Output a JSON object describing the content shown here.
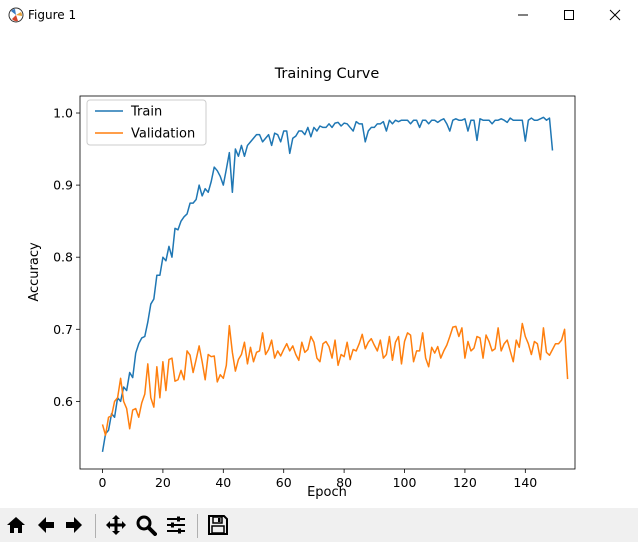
{
  "window": {
    "title": "Figure 1"
  },
  "toolbar": {
    "buttons": [
      "home-icon",
      "back-arrow-icon",
      "forward-arrow-icon",
      "pan-icon",
      "zoom-icon",
      "configure-subplots-icon",
      "save-icon"
    ]
  },
  "chart_data": {
    "type": "line",
    "title": "Training Curve",
    "xlabel": "Epoch",
    "ylabel": "Accuracy",
    "xlim": [
      -7.45,
      156.45
    ],
    "ylim": [
      0.5062,
      1.0236
    ],
    "xticks": [
      "0",
      "20",
      "40",
      "60",
      "80",
      "100",
      "120",
      "140"
    ],
    "xtick_values": [
      0,
      20,
      40,
      60,
      80,
      100,
      120,
      140
    ],
    "yticks": [
      "0.6",
      "0.7",
      "0.8",
      "0.9",
      "1.0"
    ],
    "ytick_values": [
      0.6,
      0.7,
      0.8,
      0.9,
      1.0
    ],
    "legend_position": "top-left",
    "grid": false,
    "series": [
      {
        "name": "Train",
        "color": "#1f77b4",
        "values": [
          0.53,
          0.555,
          0.56,
          0.583,
          0.578,
          0.605,
          0.6,
          0.62,
          0.615,
          0.64,
          0.633,
          0.667,
          0.68,
          0.688,
          0.69,
          0.71,
          0.735,
          0.742,
          0.775,
          0.775,
          0.8,
          0.795,
          0.815,
          0.8,
          0.84,
          0.838,
          0.85,
          0.856,
          0.86,
          0.875,
          0.875,
          0.88,
          0.9,
          0.885,
          0.895,
          0.89,
          0.905,
          0.925,
          0.92,
          0.912,
          0.9,
          0.922,
          0.945,
          0.89,
          0.95,
          0.94,
          0.955,
          0.94,
          0.955,
          0.96,
          0.965,
          0.97,
          0.97,
          0.96,
          0.965,
          0.97,
          0.955,
          0.972,
          0.97,
          0.96,
          0.975,
          0.975,
          0.944,
          0.965,
          0.968,
          0.975,
          0.975,
          0.97,
          0.98,
          0.967,
          0.98,
          0.975,
          0.982,
          0.98,
          0.98,
          0.985,
          0.98,
          0.986,
          0.987,
          0.982,
          0.986,
          0.985,
          0.98,
          0.975,
          0.988,
          0.985,
          0.985,
          0.96,
          0.975,
          0.98,
          0.98,
          0.985,
          0.985,
          0.988,
          0.975,
          0.99,
          0.985,
          0.99,
          0.988,
          0.99,
          0.99,
          0.99,
          0.985,
          0.99,
          0.99,
          0.98,
          0.99,
          0.99,
          0.985,
          0.99,
          0.99,
          0.987,
          0.99,
          0.992,
          0.985,
          0.975,
          0.99,
          0.992,
          0.99,
          0.99,
          0.992,
          0.975,
          0.99,
          0.99,
          0.962,
          0.992,
          0.99,
          0.99,
          0.99,
          0.985,
          0.99,
          0.99,
          0.992,
          0.99,
          0.987,
          0.993,
          0.99,
          0.99,
          0.99,
          0.99,
          0.961,
          0.99,
          0.993,
          0.99,
          0.99,
          0.992,
          0.994,
          0.99,
          0.993,
          0.948
        ]
      },
      {
        "name": "Validation",
        "color": "#ff7f0e",
        "values": [
          0.568,
          0.553,
          0.578,
          0.58,
          0.6,
          0.605,
          0.632,
          0.6,
          0.59,
          0.562,
          0.588,
          0.59,
          0.578,
          0.598,
          0.61,
          0.652,
          0.605,
          0.592,
          0.648,
          0.605,
          0.655,
          0.615,
          0.658,
          0.66,
          0.628,
          0.63,
          0.643,
          0.63,
          0.67,
          0.664,
          0.64,
          0.658,
          0.677,
          0.655,
          0.63,
          0.665,
          0.662,
          0.663,
          0.627,
          0.637,
          0.632,
          0.65,
          0.705,
          0.668,
          0.642,
          0.658,
          0.665,
          0.682,
          0.652,
          0.675,
          0.655,
          0.668,
          0.67,
          0.695,
          0.665,
          0.672,
          0.685,
          0.66,
          0.67,
          0.663,
          0.672,
          0.68,
          0.67,
          0.677,
          0.665,
          0.657,
          0.682,
          0.668,
          0.672,
          0.69,
          0.682,
          0.66,
          0.655,
          0.68,
          0.683,
          0.676,
          0.66,
          0.685,
          0.65,
          0.665,
          0.662,
          0.682,
          0.658,
          0.672,
          0.67,
          0.68,
          0.693,
          0.673,
          0.682,
          0.687,
          0.678,
          0.67,
          0.685,
          0.66,
          0.665,
          0.69,
          0.657,
          0.682,
          0.69,
          0.652,
          0.683,
          0.695,
          0.692,
          0.655,
          0.67,
          0.67,
          0.695,
          0.66,
          0.648,
          0.675,
          0.667,
          0.676,
          0.66,
          0.67,
          0.678,
          0.69,
          0.703,
          0.704,
          0.69,
          0.702,
          0.66,
          0.683,
          0.67,
          0.674,
          0.69,
          0.688,
          0.66,
          0.692,
          0.683,
          0.67,
          0.673,
          0.702,
          0.67,
          0.68,
          0.685,
          0.67,
          0.655,
          0.685,
          0.675,
          0.708,
          0.69,
          0.68,
          0.665,
          0.683,
          0.68,
          0.658,
          0.702,
          0.668,
          0.664,
          0.672,
          0.68,
          0.68,
          0.685,
          0.7,
          0.631
        ]
      }
    ]
  }
}
